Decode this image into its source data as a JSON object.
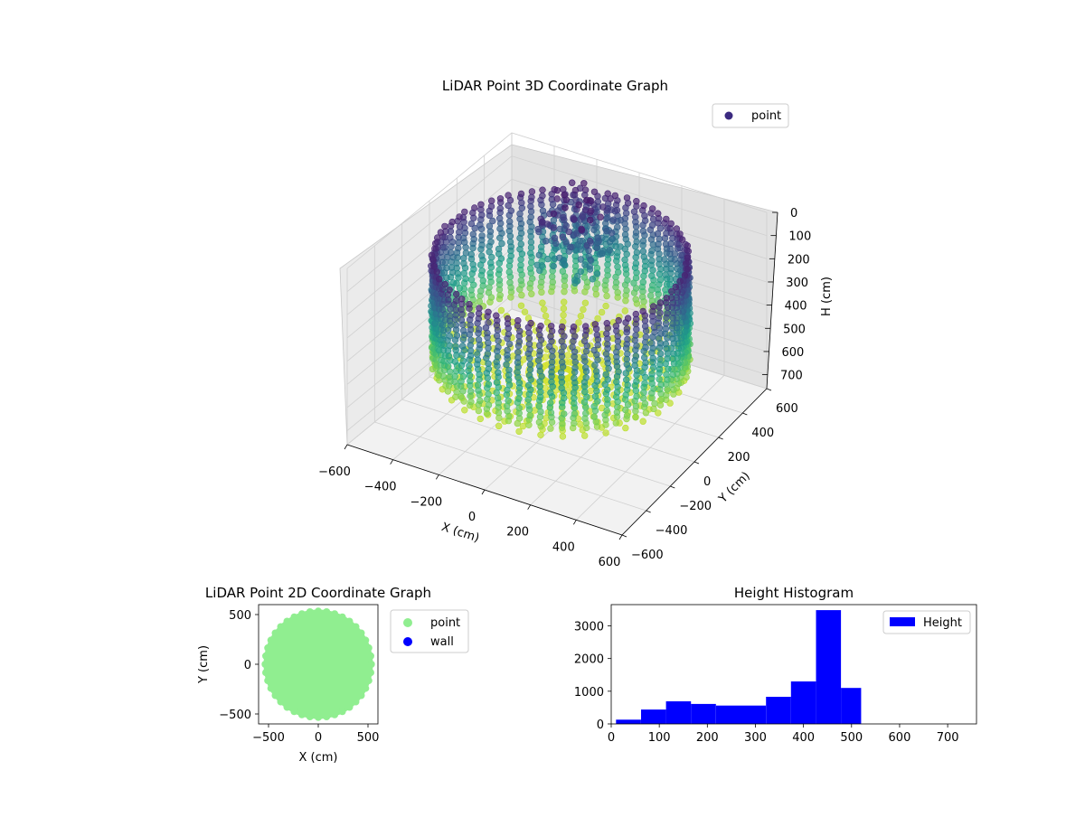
{
  "chart_data": [
    {
      "type": "scatter",
      "projection": "3d",
      "title": "LiDAR Point 3D Coordinate Graph",
      "xlabel": "X (cm)",
      "ylabel": "Y (cm)",
      "zlabel": "H (cm)",
      "xlim": [
        -600,
        600
      ],
      "ylim": [
        -600,
        600
      ],
      "zlim": [
        0,
        760
      ],
      "z_inverted": true,
      "x_ticks": [
        "−600",
        "−400",
        "−200",
        "0",
        "200",
        "400",
        "600"
      ],
      "y_ticks": [
        "−600",
        "−400",
        "−200",
        "0",
        "200",
        "400",
        "600"
      ],
      "z_ticks": [
        "0",
        "100",
        "200",
        "300",
        "400",
        "500",
        "600",
        "700"
      ],
      "colormap": "viridis",
      "legend": {
        "position": "top-right",
        "entries": [
          {
            "label": "point",
            "color": "#3b2a80"
          }
        ]
      },
      "description_shape": "cylindrical wall of radius ~500 cm spanning heights ~50–520 cm plus sparse tree-like cluster near x -250..0, y 200..500",
      "wall_radius": 500,
      "wall_h_min": 60,
      "wall_h_max": 520
    },
    {
      "type": "scatter",
      "title": "LiDAR Point 2D Coordinate Graph",
      "xlabel": "X (cm)",
      "ylabel": "Y (cm)",
      "xlim": [
        -600,
        600
      ],
      "ylim": [
        -600,
        600
      ],
      "x_ticks": [
        "−500",
        "0",
        "500"
      ],
      "y_ticks": [
        "−500",
        "0",
        "500"
      ],
      "disc_radius": 550,
      "legend": {
        "position": "outside-right",
        "entries": [
          {
            "label": "point",
            "color": "#90ee90"
          },
          {
            "label": "wall",
            "color": "#0000ff"
          }
        ]
      }
    },
    {
      "type": "bar",
      "subtype": "histogram",
      "title": "Height Histogram",
      "color": "#0000ff",
      "xlim": [
        0,
        760
      ],
      "ylim": [
        0,
        3650
      ],
      "x_ticks": [
        0,
        100,
        200,
        300,
        400,
        500,
        600,
        700
      ],
      "y_ticks": [
        0,
        1000,
        2000,
        3000
      ],
      "bin_edges": [
        10,
        62,
        114,
        166,
        218,
        270,
        322,
        374,
        426,
        478,
        520
      ],
      "counts": [
        130,
        440,
        690,
        610,
        560,
        560,
        830,
        1300,
        3480,
        1100
      ],
      "legend": {
        "position": "top-right",
        "entries": [
          {
            "label": "Height",
            "color": "#0000ff"
          }
        ]
      }
    }
  ]
}
